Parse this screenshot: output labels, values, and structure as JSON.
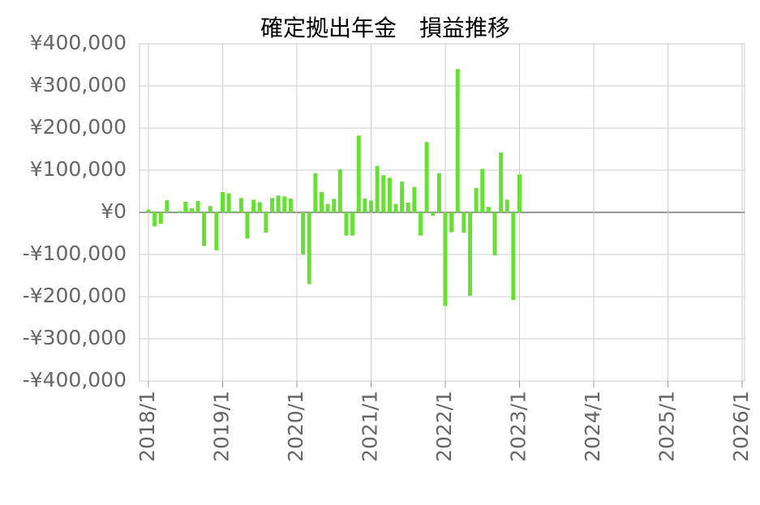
{
  "chart_data": {
    "type": "bar",
    "title": "確定拠出年金　損益推移",
    "x": [
      "2018/1",
      "2018/2",
      "2018/3",
      "2018/4",
      "2018/5",
      "2018/6",
      "2018/7",
      "2018/8",
      "2018/9",
      "2018/10",
      "2018/11",
      "2018/12",
      "2019/1",
      "2019/2",
      "2019/3",
      "2019/4",
      "2019/5",
      "2019/6",
      "2019/7",
      "2019/8",
      "2019/9",
      "2019/10",
      "2019/11",
      "2019/12",
      "2020/1",
      "2020/2",
      "2020/3",
      "2020/4",
      "2020/5",
      "2020/6",
      "2020/7",
      "2020/8",
      "2020/9",
      "2020/10",
      "2020/11",
      "2020/12",
      "2021/1",
      "2021/2",
      "2021/3",
      "2021/4",
      "2021/5",
      "2021/6",
      "2021/7",
      "2021/8",
      "2021/9",
      "2021/10",
      "2021/11",
      "2021/12",
      "2022/1",
      "2022/2",
      "2022/3",
      "2022/4",
      "2022/5",
      "2022/6",
      "2022/7",
      "2022/8",
      "2022/9",
      "2022/10",
      "2022/11",
      "2022/12",
      "2023/1"
    ],
    "values": [
      7000,
      -33000,
      -27000,
      29000,
      0,
      3000,
      25000,
      10000,
      27000,
      -80000,
      15000,
      -90000,
      48000,
      45000,
      3000,
      34000,
      -62000,
      30000,
      24000,
      -48000,
      34000,
      40000,
      38000,
      33000,
      0,
      -100000,
      -170000,
      93000,
      48000,
      20000,
      32000,
      102000,
      -55000,
      -55000,
      182000,
      33000,
      28000,
      110000,
      88000,
      82000,
      20000,
      73000,
      23000,
      60000,
      -55000,
      167000,
      -8000,
      93000,
      -222000,
      -47000,
      340000,
      -48000,
      -198000,
      58000,
      103000,
      13000,
      -102000,
      142000,
      30000,
      -208000,
      90000
    ],
    "color": "#66e033",
    "xlim": [
      "2018/1",
      "2026/1"
    ],
    "xticks": [
      "2018/1",
      "2019/1",
      "2020/1",
      "2021/1",
      "2022/1",
      "2023/1",
      "2024/1",
      "2025/1",
      "2026/1"
    ],
    "ylim": [
      -400000,
      400000
    ],
    "yticks": [
      {
        "value": -400000,
        "label": "-¥400,000"
      },
      {
        "value": -300000,
        "label": "-¥300,000"
      },
      {
        "value": -200000,
        "label": "-¥200,000"
      },
      {
        "value": -100000,
        "label": "-¥100,000"
      },
      {
        "value": 0,
        "label": "¥0"
      },
      {
        "value": 100000,
        "label": "¥100,000"
      },
      {
        "value": 200000,
        "label": "¥200,000"
      },
      {
        "value": 300000,
        "label": "¥300,000"
      },
      {
        "value": 400000,
        "label": "¥400,000"
      }
    ],
    "grid": true
  }
}
